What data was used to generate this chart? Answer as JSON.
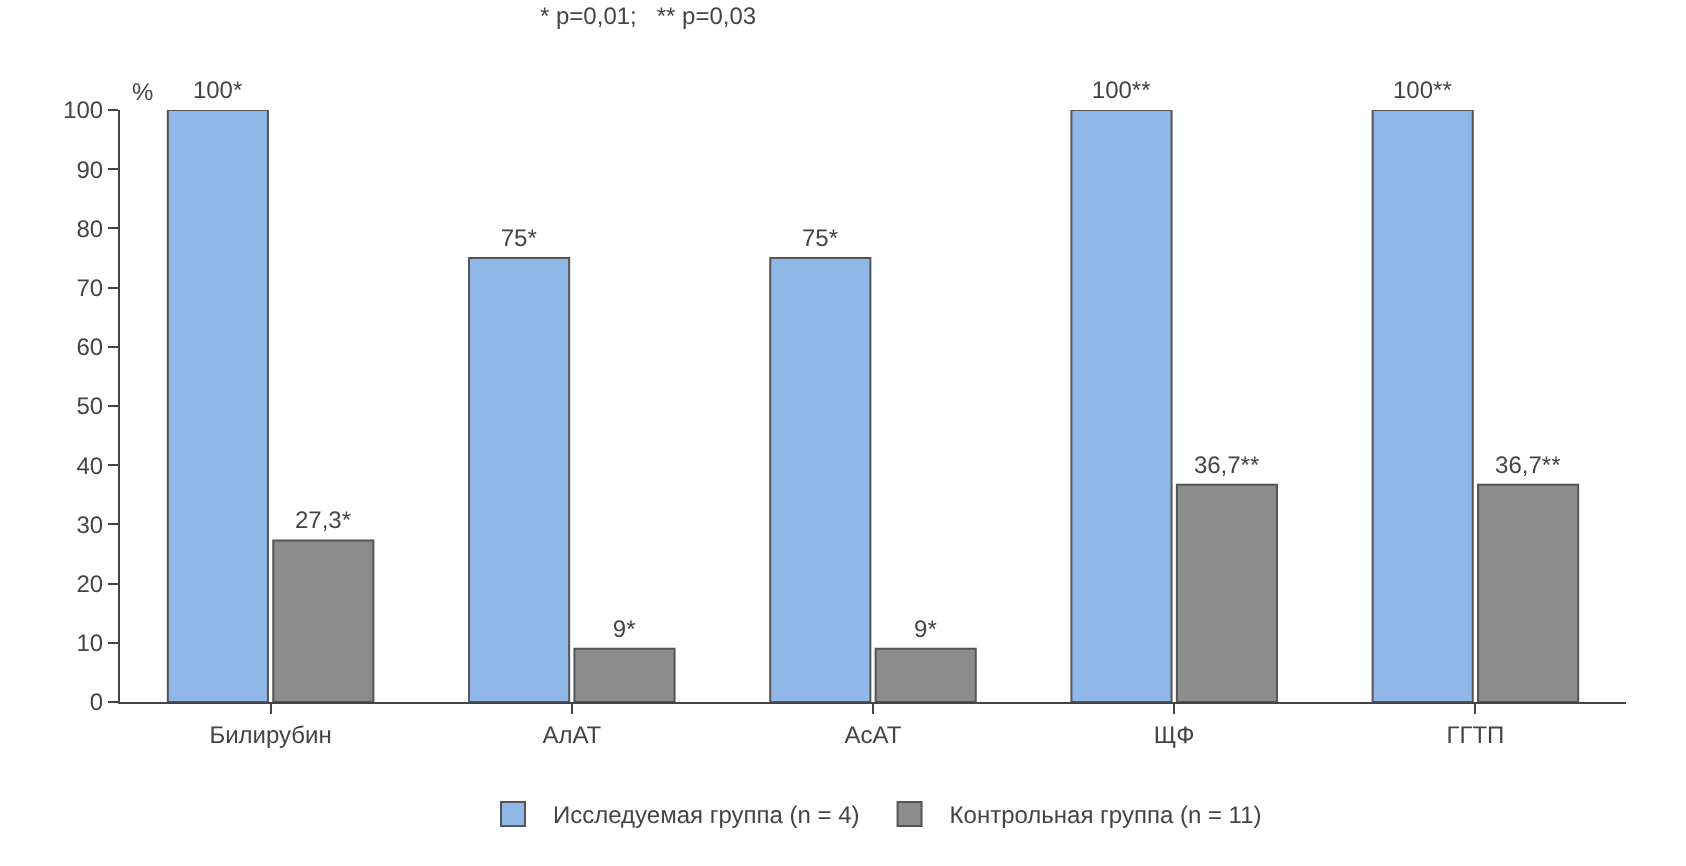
{
  "chart_data": {
    "type": "bar",
    "ylabel": "%",
    "categories": [
      "Билирубин",
      "АлАТ",
      "АсАТ",
      "ЩФ",
      "ГГТП"
    ],
    "series": [
      {
        "name": "Исследуемая группа (n = 4)",
        "color": "#8fb8e8",
        "values": [
          100,
          75,
          75,
          100,
          100
        ],
        "value_labels": [
          "100*",
          "75*",
          "75*",
          "100**",
          "100**"
        ]
      },
      {
        "name": "Контрольная группа (n = 11)",
        "color": "#8c8c8c",
        "values": [
          27.3,
          9,
          9,
          36.7,
          36.7
        ],
        "value_labels": [
          "27,3*",
          "9*",
          "9*",
          "36,7**",
          "36,7**"
        ]
      }
    ],
    "ylim": [
      0,
      100
    ],
    "yticks": [
      0,
      10,
      20,
      30,
      40,
      50,
      60,
      70,
      80,
      90,
      100
    ],
    "annotations": [
      "* p=0,01;   ** p=0,03"
    ],
    "legend": "bottom"
  }
}
